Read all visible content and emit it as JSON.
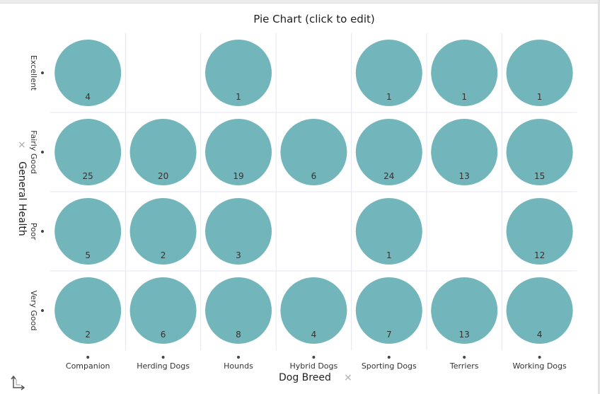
{
  "title": "Pie Chart (click to edit)",
  "icons": {
    "x_remove": "×",
    "y_remove": "×",
    "swap": "swap-axes-icon"
  },
  "colors": {
    "pie": "#72b5ba",
    "grid": "#e6e6f2"
  },
  "chart_data": {
    "type": "pie",
    "xlabel": "Dog Breed",
    "ylabel": "General Health",
    "columns": [
      "Companion",
      "Herding Dogs",
      "Hounds",
      "Hybrid Dogs",
      "Sporting Dogs",
      "Terriers",
      "Working Dogs"
    ],
    "rows": [
      "Excellent",
      "Fairly Good",
      "Poor",
      "Very Good"
    ],
    "values": [
      [
        4,
        null,
        1,
        null,
        1,
        1,
        1
      ],
      [
        25,
        20,
        19,
        6,
        24,
        13,
        15
      ],
      [
        5,
        2,
        3,
        null,
        1,
        null,
        12
      ],
      [
        2,
        6,
        8,
        4,
        7,
        13,
        4
      ]
    ]
  }
}
